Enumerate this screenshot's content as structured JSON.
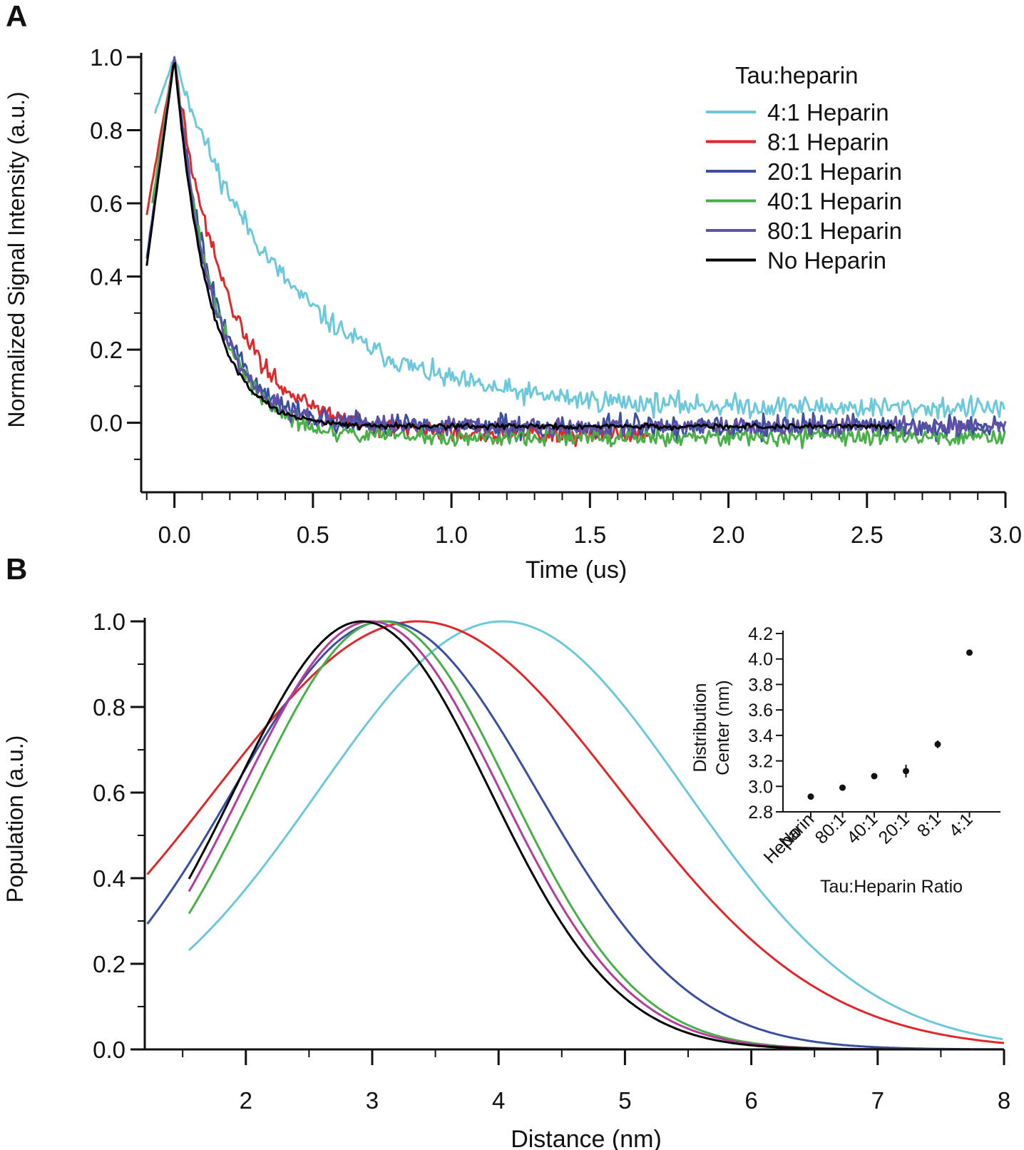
{
  "chart_data": [
    {
      "panel": "A",
      "type": "line",
      "xlabel": "Time (us)",
      "ylabel": "Normalized Signal Intensity (a.u.)",
      "xlim": [
        -0.12,
        3.0
      ],
      "ylim": [
        -0.19,
        1.0
      ],
      "xticks": [
        "0.0",
        "0.5",
        "1.0",
        "1.5",
        "2.0",
        "2.5",
        "3.0"
      ],
      "yticks": [
        "0.0",
        "0.2",
        "0.4",
        "0.6",
        "0.8",
        "1.0"
      ],
      "legend_title": "Tau:heparin",
      "legend_position": "top-right",
      "series": [
        {
          "name": "4:1 Heparin",
          "color": "#6cc8db",
          "start": -0.07,
          "end": 3.0,
          "y0": 0.85,
          "tau": 0.4,
          "baseline": 0.04,
          "noise": 0.015
        },
        {
          "name": "8:1 Heparin",
          "color": "#e0282a",
          "start": -0.1,
          "end": 1.72,
          "y0": 0.57,
          "tau": 0.19,
          "baseline": -0.03,
          "noise": 0.013
        },
        {
          "name": "20:1 Heparin",
          "color": "#3a4fa0",
          "start": -0.1,
          "end": 3.0,
          "y0": 0.45,
          "tau": 0.14,
          "baseline": -0.01,
          "noise": 0.015
        },
        {
          "name": "40:1 Heparin",
          "color": "#49b048",
          "start": -0.08,
          "end": 3.0,
          "y0": 0.6,
          "tau": 0.14,
          "baseline": -0.04,
          "noise": 0.012
        },
        {
          "name": "80:1 Heparin",
          "color": "#6150a8",
          "start": -0.09,
          "end": 3.0,
          "y0": 0.5,
          "tau": 0.13,
          "baseline": -0.01,
          "noise": 0.012
        },
        {
          "name": "No Heparin",
          "color": "#000000",
          "start": -0.1,
          "end": 2.6,
          "y0": 0.43,
          "tau": 0.12,
          "baseline": -0.01,
          "noise": 0.004
        }
      ]
    },
    {
      "panel": "B",
      "type": "line",
      "xlabel": "Distance (nm)",
      "ylabel": "Population (a.u.)",
      "xlim": [
        1.2,
        8.0
      ],
      "ylim": [
        0.0,
        1.0
      ],
      "xticks": [
        "2",
        "3",
        "4",
        "5",
        "6",
        "7",
        "8"
      ],
      "yticks": [
        "0.0",
        "0.2",
        "0.4",
        "0.6",
        "0.8",
        "1.0"
      ],
      "series": [
        {
          "name": "4:1",
          "color": "#6cc8db",
          "center": 4.03,
          "sigma": 1.45,
          "start": 1.55
        },
        {
          "name": "8:1",
          "color": "#e0282a",
          "center": 3.36,
          "sigma": 1.6,
          "start": 1.22
        },
        {
          "name": "20:1",
          "color": "#3a4fa0",
          "center": 3.1,
          "sigma": 1.2,
          "start": 1.22
        },
        {
          "name": "40:1",
          "color": "#49b048",
          "center": 3.08,
          "sigma": 1.01,
          "start": 1.55
        },
        {
          "name": "80:1",
          "color": "#b43c9c",
          "center": 2.99,
          "sigma": 1.02,
          "start": 1.55
        },
        {
          "name": "No Heparin",
          "color": "#000000",
          "center": 2.92,
          "sigma": 1.01,
          "start": 1.55
        }
      ]
    },
    {
      "panel": "B-inset",
      "type": "scatter",
      "xlabel": "Tau:Heparin Ratio",
      "ylabel": [
        "Distribution",
        "Center (nm)"
      ],
      "ylim": [
        2.8,
        4.2
      ],
      "yticks": [
        "2.8",
        "3.0",
        "3.2",
        "3.4",
        "3.6",
        "3.8",
        "4.0",
        "4.2"
      ],
      "categories": [
        [
          "No",
          "Heparin"
        ],
        [
          "80:1"
        ],
        [
          "40:1"
        ],
        [
          "20:1"
        ],
        [
          "8:1"
        ],
        [
          "4:1"
        ]
      ],
      "values": [
        2.92,
        2.99,
        3.08,
        3.12,
        3.33,
        4.05
      ],
      "errors": [
        0.015,
        0.015,
        0.015,
        0.05,
        0.03,
        0.02
      ]
    }
  ],
  "panel_labels": {
    "a": "A",
    "b": "B"
  }
}
